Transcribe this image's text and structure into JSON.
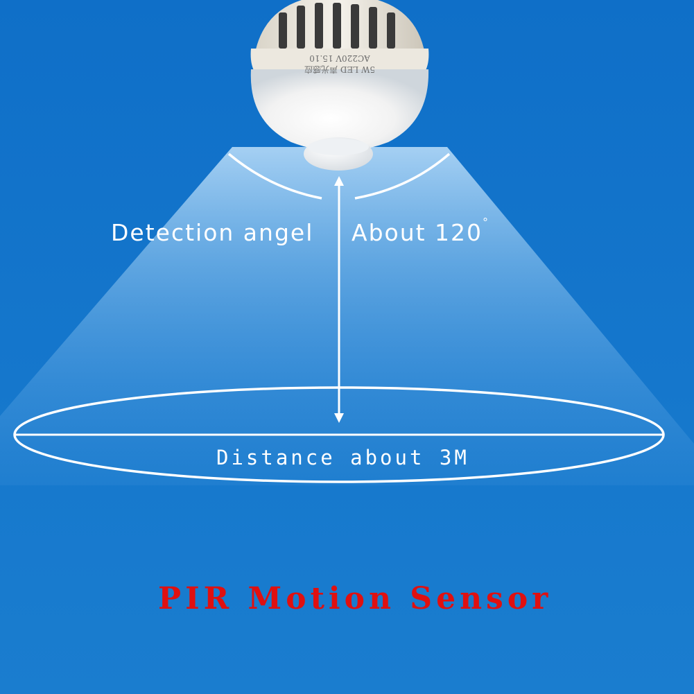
{
  "bulb": {
    "line1": "5W LED 声光感应",
    "line2": "AC220V 15.10"
  },
  "labels": {
    "detection_angle": "Detection angel",
    "about_angle": "About 120",
    "degree_symbol": "°",
    "distance": "Distance about 3M"
  },
  "title": "PIR Motion Sensor",
  "colors": {
    "background": "#1474c9",
    "title": "#e01010",
    "text": "#ffffff"
  }
}
